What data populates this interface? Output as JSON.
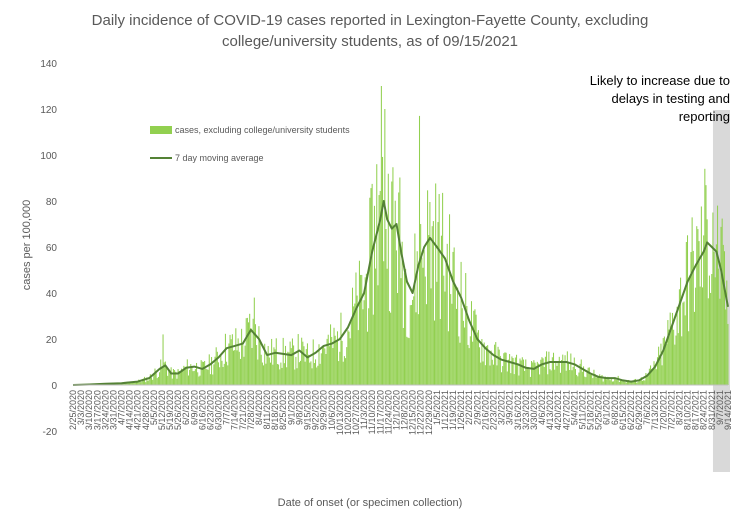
{
  "chart_data": {
    "type": "bar",
    "title_line1": "Daily incidence of COVID-19 cases reported in Lexington-Fayette County, excluding",
    "title_line2": "college/university students, as of 09/15/2021",
    "xlabel": "Date of onset (or specimen collection)",
    "ylabel": "cases per 100,000",
    "ylim": [
      -20,
      140
    ],
    "yticks": [
      -20,
      0,
      20,
      40,
      60,
      80,
      100,
      120,
      140
    ],
    "grid": false,
    "legend_position": "upper-left",
    "start_date": "2020-02-25",
    "end_date": "2021-09-14",
    "x_tick_labels": [
      "2/25/2020",
      "3/3/2020",
      "3/10/2020",
      "3/17/2020",
      "3/24/2020",
      "3/31/2020",
      "4/7/2020",
      "4/14/2020",
      "4/21/2020",
      "4/28/2020",
      "5/5/2020",
      "5/12/2020",
      "5/19/2020",
      "5/26/2020",
      "6/2/2020",
      "6/9/2020",
      "6/16/2020",
      "6/23/2020",
      "6/30/2020",
      "7/7/2020",
      "7/14/2020",
      "7/21/2020",
      "7/28/2020",
      "8/4/2020",
      "8/11/2020",
      "8/18/2020",
      "8/25/2020",
      "9/1/2020",
      "9/8/2020",
      "9/15/2020",
      "9/22/2020",
      "9/29/2020",
      "10/6/2020",
      "10/13/2020",
      "10/20/2020",
      "10/27/2020",
      "11/3/2020",
      "11/10/2020",
      "11/17/2020",
      "11/24/2020",
      "12/1/2020",
      "12/8/2020",
      "12/15/2020",
      "12/22/2020",
      "12/29/2020",
      "1/5/2021",
      "1/12/2021",
      "1/19/2021",
      "1/26/2021",
      "2/2/2021",
      "2/9/2021",
      "2/16/2021",
      "2/23/2021",
      "3/2/2021",
      "3/9/2021",
      "3/16/2021",
      "3/23/2021",
      "3/30/2021",
      "4/6/2021",
      "4/13/2021",
      "4/20/2021",
      "4/27/2021",
      "5/4/2021",
      "5/11/2021",
      "5/18/2021",
      "5/25/2021",
      "6/1/2021",
      "6/8/2021",
      "6/15/2021",
      "6/22/2021",
      "6/29/2021",
      "7/6/2021",
      "7/13/2021",
      "7/20/2021",
      "7/27/2021",
      "8/3/2021",
      "8/10/2021",
      "8/17/2021",
      "8/24/2021",
      "8/31/2021",
      "9/7/2021",
      "9/14/2021"
    ],
    "series": [
      {
        "name": "cases, excluding college/university students",
        "kind": "bar",
        "color": "#92d050"
      },
      {
        "name": "7 day moving average",
        "kind": "line",
        "color": "#548235",
        "points": [
          [
            "2020-02-25",
            0
          ],
          [
            "2020-03-10",
            0.2
          ],
          [
            "2020-03-24",
            0.5
          ],
          [
            "2020-04-07",
            0.8
          ],
          [
            "2020-04-21",
            1.5
          ],
          [
            "2020-05-01",
            3
          ],
          [
            "2020-05-10",
            7
          ],
          [
            "2020-05-15",
            8.5
          ],
          [
            "2020-05-20",
            5
          ],
          [
            "2020-05-26",
            5
          ],
          [
            "2020-06-02",
            7.5
          ],
          [
            "2020-06-09",
            8
          ],
          [
            "2020-06-16",
            7
          ],
          [
            "2020-06-23",
            9
          ],
          [
            "2020-06-30",
            12
          ],
          [
            "2020-07-07",
            16
          ],
          [
            "2020-07-14",
            17
          ],
          [
            "2020-07-21",
            18
          ],
          [
            "2020-07-28",
            24
          ],
          [
            "2020-08-04",
            20
          ],
          [
            "2020-08-11",
            13
          ],
          [
            "2020-08-18",
            14
          ],
          [
            "2020-08-25",
            13.5
          ],
          [
            "2020-09-01",
            13
          ],
          [
            "2020-09-08",
            15
          ],
          [
            "2020-09-15",
            12
          ],
          [
            "2020-09-22",
            14
          ],
          [
            "2020-09-29",
            17
          ],
          [
            "2020-10-06",
            18
          ],
          [
            "2020-10-13",
            20
          ],
          [
            "2020-10-20",
            25
          ],
          [
            "2020-10-27",
            33
          ],
          [
            "2020-11-03",
            40
          ],
          [
            "2020-11-10",
            58
          ],
          [
            "2020-11-17",
            72
          ],
          [
            "2020-11-20",
            80
          ],
          [
            "2020-11-23",
            72
          ],
          [
            "2020-11-27",
            68
          ],
          [
            "2020-12-01",
            70
          ],
          [
            "2020-12-05",
            58
          ],
          [
            "2020-12-10",
            45
          ],
          [
            "2020-12-15",
            40
          ],
          [
            "2020-12-20",
            52
          ],
          [
            "2020-12-25",
            60
          ],
          [
            "2020-12-30",
            64
          ],
          [
            "2021-01-05",
            60
          ],
          [
            "2021-01-12",
            55
          ],
          [
            "2021-01-19",
            45
          ],
          [
            "2021-01-26",
            38
          ],
          [
            "2021-02-02",
            28
          ],
          [
            "2021-02-09",
            20
          ],
          [
            "2021-02-16",
            16
          ],
          [
            "2021-02-23",
            13
          ],
          [
            "2021-03-02",
            11
          ],
          [
            "2021-03-09",
            10
          ],
          [
            "2021-03-16",
            9
          ],
          [
            "2021-03-23",
            7.5
          ],
          [
            "2021-03-30",
            7
          ],
          [
            "2021-04-06",
            9
          ],
          [
            "2021-04-13",
            10
          ],
          [
            "2021-04-20",
            10
          ],
          [
            "2021-04-27",
            10
          ],
          [
            "2021-05-04",
            9
          ],
          [
            "2021-05-11",
            7
          ],
          [
            "2021-05-18",
            5
          ],
          [
            "2021-05-25",
            3.5
          ],
          [
            "2021-06-01",
            3
          ],
          [
            "2021-06-08",
            3
          ],
          [
            "2021-06-15",
            2
          ],
          [
            "2021-06-22",
            1.5
          ],
          [
            "2021-06-29",
            2
          ],
          [
            "2021-07-06",
            4
          ],
          [
            "2021-07-13",
            8
          ],
          [
            "2021-07-20",
            15
          ],
          [
            "2021-07-27",
            25
          ],
          [
            "2021-08-03",
            35
          ],
          [
            "2021-08-10",
            45
          ],
          [
            "2021-08-17",
            52
          ],
          [
            "2021-08-24",
            58
          ],
          [
            "2021-08-27",
            62
          ],
          [
            "2021-08-31",
            60
          ],
          [
            "2021-09-04",
            58
          ],
          [
            "2021-09-08",
            50
          ],
          [
            "2021-09-11",
            42
          ],
          [
            "2021-09-14",
            34
          ]
        ]
      }
    ],
    "annotation": {
      "text_lines": [
        "Likely to increase due to",
        "delays in testing and",
        "reporting"
      ],
      "shade_start": "2021-09-01",
      "shade_end": "2021-09-14",
      "shade_color": "#d9d9d9"
    }
  },
  "colors": {
    "axis": "#bfbfbf",
    "text": "#595959"
  }
}
